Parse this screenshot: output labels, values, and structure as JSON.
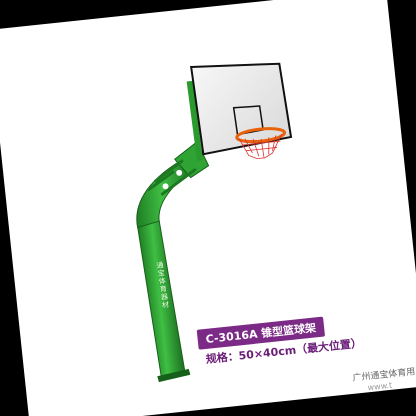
{
  "product": {
    "model_name": "C-3016A 锥型篮球架",
    "spec_text": "规格：50×40cm（最大位置）",
    "pole_brand": "通宝体育器材",
    "company": "广州通宝体育用品有",
    "website": "www.t"
  },
  "colors": {
    "pole_green": "#2fa334",
    "label_purple": "#7b2a86",
    "rim_orange": "#e8620c",
    "background": "#000000"
  }
}
